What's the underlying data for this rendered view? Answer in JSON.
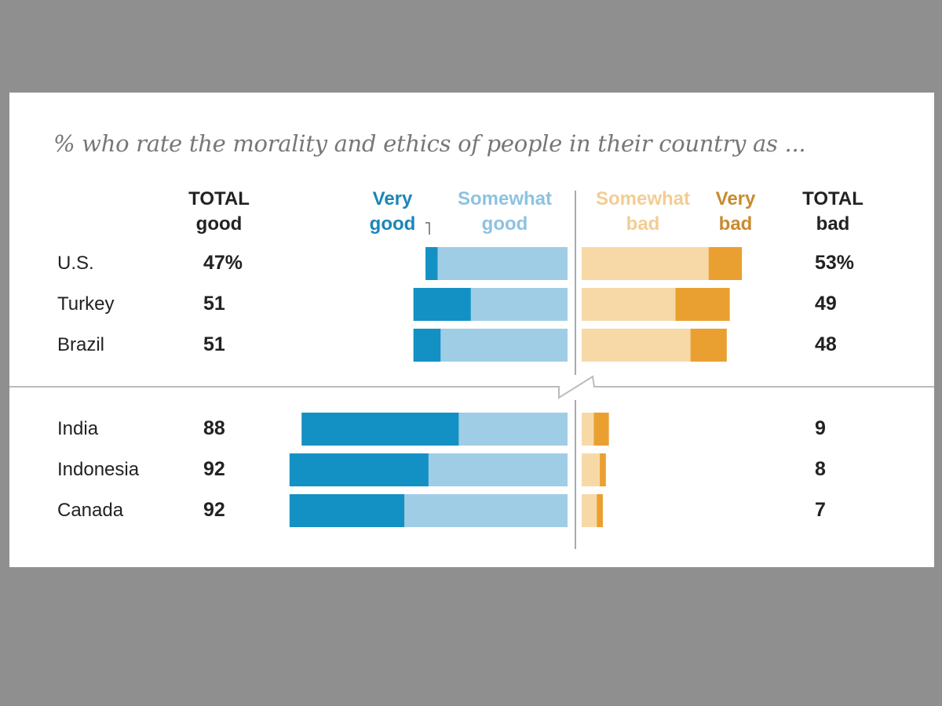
{
  "chart_data": {
    "type": "bar",
    "orientation": "horizontal-diverging",
    "title": "% who rate the morality and ethics of people in their country as ...",
    "headers": {
      "total_good": [
        "TOTAL",
        "good"
      ],
      "very_good": [
        "Very",
        "good"
      ],
      "somewhat_good": [
        "Somewhat",
        "good"
      ],
      "somewhat_bad": [
        "Somewhat",
        "bad"
      ],
      "very_bad": [
        "Very",
        "bad"
      ],
      "total_bad": [
        "TOTAL",
        "bad"
      ]
    },
    "categories": [
      "U.S.",
      "Turkey",
      "Brazil",
      "India",
      "Indonesia",
      "Canada"
    ],
    "total_good_labels": [
      "47%",
      "51",
      "51",
      "88",
      "92",
      "92"
    ],
    "total_bad_labels": [
      "53%",
      "49",
      "48",
      "9",
      "8",
      "7"
    ],
    "series": [
      {
        "name": "Very good",
        "color": "#1391c4",
        "values": [
          4,
          19,
          9,
          52,
          46,
          38
        ]
      },
      {
        "name": "Somewhat good",
        "color": "#9fcde6",
        "values": [
          43,
          32,
          42,
          36,
          46,
          54
        ]
      },
      {
        "name": "Somewhat bad",
        "color": "#f7d9a8",
        "values": [
          42,
          31,
          36,
          4,
          6,
          5
        ]
      },
      {
        "name": "Very bad",
        "color": "#eaa030",
        "values": [
          11,
          18,
          12,
          5,
          2,
          2
        ]
      }
    ],
    "header_colors": {
      "very_good": "#1a86b8",
      "somewhat_good": "#8cc3e0",
      "somewhat_bad": "#f3cd93",
      "very_bad": "#c98a2e",
      "total": "#222222"
    },
    "xlim": [
      0,
      100
    ],
    "grid": false,
    "legend": "top"
  }
}
